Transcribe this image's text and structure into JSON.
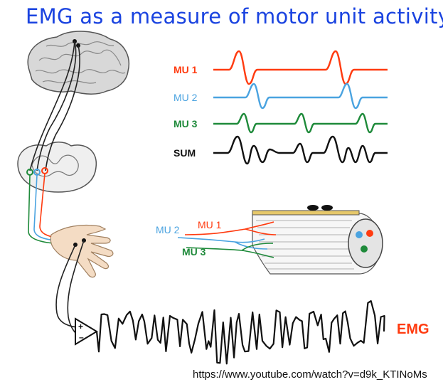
{
  "title": "EMG as a measure of motor unit activity",
  "traces": [
    {
      "label": "MU 1",
      "color": "#ff3b10"
    },
    {
      "label": "MU 2",
      "color": "#4aa3e0"
    },
    {
      "label": "MU 3",
      "color": "#1e8a3a"
    },
    {
      "label": "SUM",
      "color": "#111111"
    }
  ],
  "nerve_labels": [
    {
      "label": "MU 2",
      "color": "#4aa3e0"
    },
    {
      "label": "MU 1",
      "color": "#ff3b10"
    },
    {
      "label": "MU 3",
      "color": "#1e8a3a"
    }
  ],
  "amplifier": {
    "plus": "+",
    "minus": "–"
  },
  "emg_label": "EMG",
  "source_url": "https://www.youtube.com/watch?v=d9k_KTINoMs"
}
